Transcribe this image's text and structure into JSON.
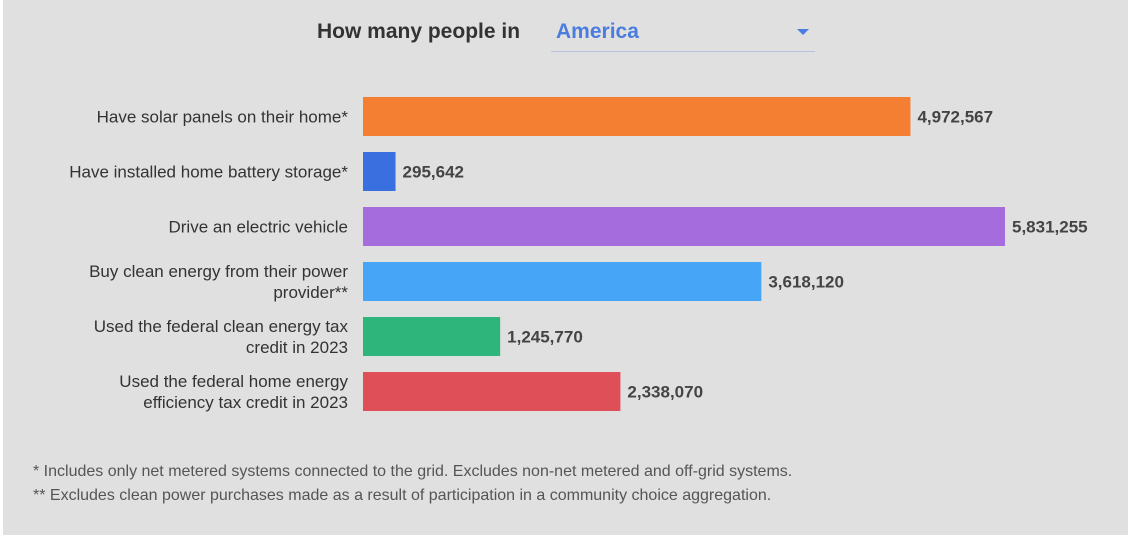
{
  "header": {
    "prompt": "How many people in",
    "region": "America"
  },
  "chart_data": {
    "type": "bar",
    "orientation": "horizontal",
    "categories": [
      [
        "Have solar panels on their home*"
      ],
      [
        "Have installed home battery storage*"
      ],
      [
        "Drive an electric vehicle"
      ],
      [
        "Buy clean energy from their power",
        "provider**"
      ],
      [
        "Used the federal clean energy tax",
        "credit in 2023"
      ],
      [
        "Used the federal home energy",
        "efficiency tax credit in 2023"
      ]
    ],
    "values": [
      4972567,
      295642,
      5831255,
      3618120,
      1245770,
      2338070
    ],
    "value_labels": [
      "4,972,567",
      "295,642",
      "5,831,255",
      "3,618,120",
      "1,245,770",
      "2,338,070"
    ],
    "colors": [
      "#f47f32",
      "#3a6fe0",
      "#a46cdc",
      "#46a5f7",
      "#2db57c",
      "#df4f57"
    ],
    "xlim": [
      0,
      5831255
    ],
    "grid": false,
    "legend": "none"
  },
  "footnotes": [
    "* Includes only net metered systems connected to the grid. Excludes non-net metered and off-grid systems.",
    "** Excludes clean power purchases made as a result of participation in a community choice aggregation."
  ]
}
